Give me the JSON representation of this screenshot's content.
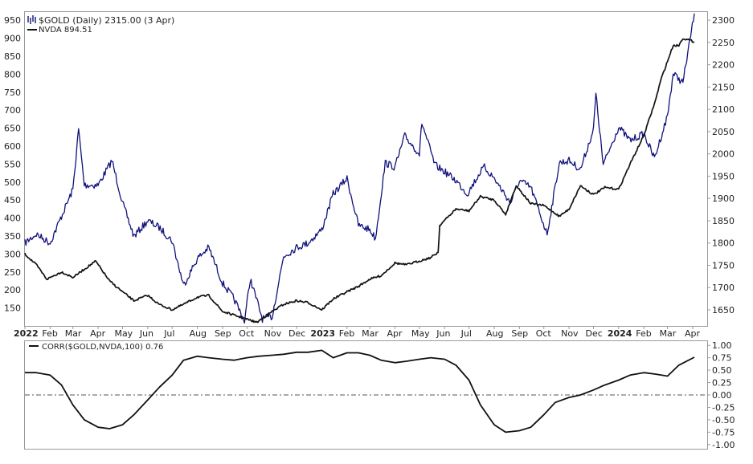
{
  "legend": {
    "gold_label": "$GOLD (Daily) 2315.00 (3 Apr)",
    "nvda_label": "NVDA 894.51",
    "corr_label": "CORR($GOLD,NVDA,100) 0.76"
  },
  "colors": {
    "gold": "#10127a",
    "nvda": "#111111",
    "corr": "#111111",
    "border": "#9a9a9a",
    "zero_line": "#555555"
  },
  "chart_data": [
    {
      "type": "line",
      "id": "price-panel",
      "x_tick_labels": [
        "2022",
        "Feb",
        "Mar",
        "Apr",
        "May",
        "Jun",
        "Jul",
        "Aug",
        "Sep",
        "Oct",
        "Nov",
        "Dec",
        "2023",
        "Feb",
        "Mar",
        "Apr",
        "May",
        "Jun",
        "Jul",
        "Aug",
        "Sep",
        "Oct",
        "Nov",
        "Dec",
        "2024",
        "Feb",
        "Mar",
        "Apr"
      ],
      "x_range": [
        "2022-01-01",
        "2024-04-05"
      ],
      "left_axis": {
        "series": "NVDA",
        "ticks": [
          150,
          200,
          250,
          300,
          350,
          400,
          450,
          500,
          550,
          600,
          650,
          700,
          750,
          800,
          850,
          900,
          950
        ],
        "ylim": [
          100,
          975
        ]
      },
      "right_axis": {
        "series": "$GOLD",
        "ticks": [
          1650,
          1700,
          1750,
          1800,
          1850,
          1900,
          1950,
          2000,
          2050,
          2100,
          2150,
          2200,
          2250,
          2300
        ],
        "ylim": [
          1614,
          2320
        ]
      },
      "grid": false,
      "series": [
        {
          "name": "$GOLD",
          "axis": "right",
          "points": [
            [
              "2022-01-01",
              1800
            ],
            [
              "2022-01-15",
              1820
            ],
            [
              "2022-02-01",
              1800
            ],
            [
              "2022-02-15",
              1860
            ],
            [
              "2022-03-01",
              1920
            ],
            [
              "2022-03-08",
              2055
            ],
            [
              "2022-03-15",
              1930
            ],
            [
              "2022-04-01",
              1930
            ],
            [
              "2022-04-18",
              1985
            ],
            [
              "2022-05-01",
              1890
            ],
            [
              "2022-05-15",
              1815
            ],
            [
              "2022-06-01",
              1850
            ],
            [
              "2022-06-15",
              1835
            ],
            [
              "2022-07-01",
              1805
            ],
            [
              "2022-07-15",
              1705
            ],
            [
              "2022-08-01",
              1765
            ],
            [
              "2022-08-15",
              1790
            ],
            [
              "2022-09-01",
              1710
            ],
            [
              "2022-09-15",
              1675
            ],
            [
              "2022-09-28",
              1625
            ],
            [
              "2022-10-05",
              1720
            ],
            [
              "2022-10-20",
              1630
            ],
            [
              "2022-11-01",
              1635
            ],
            [
              "2022-11-15",
              1770
            ],
            [
              "2022-12-01",
              1790
            ],
            [
              "2022-12-15",
              1800
            ],
            [
              "2023-01-01",
              1830
            ],
            [
              "2023-01-15",
              1910
            ],
            [
              "2023-02-01",
              1945
            ],
            [
              "2023-02-15",
              1840
            ],
            [
              "2023-03-01",
              1830
            ],
            [
              "2023-03-08",
              1810
            ],
            [
              "2023-03-20",
              1980
            ],
            [
              "2023-04-01",
              1970
            ],
            [
              "2023-04-13",
              2040
            ],
            [
              "2023-05-01",
              2000
            ],
            [
              "2023-05-04",
              2070
            ],
            [
              "2023-05-20",
              1975
            ],
            [
              "2023-06-01",
              1960
            ],
            [
              "2023-06-15",
              1940
            ],
            [
              "2023-06-29",
              1910
            ],
            [
              "2023-07-15",
              1960
            ],
            [
              "2023-07-20",
              1970
            ],
            [
              "2023-08-01",
              1945
            ],
            [
              "2023-08-21",
              1890
            ],
            [
              "2023-09-01",
              1940
            ],
            [
              "2023-09-15",
              1925
            ],
            [
              "2023-10-05",
              1820
            ],
            [
              "2023-10-20",
              1980
            ],
            [
              "2023-11-01",
              1985
            ],
            [
              "2023-11-15",
              1965
            ],
            [
              "2023-12-01",
              2055
            ],
            [
              "2023-12-04",
              2135
            ],
            [
              "2023-12-13",
              1975
            ],
            [
              "2024-01-01",
              2060
            ],
            [
              "2024-01-15",
              2030
            ],
            [
              "2024-02-01",
              2045
            ],
            [
              "2024-02-14",
              1990
            ],
            [
              "2024-03-01",
              2085
            ],
            [
              "2024-03-08",
              2180
            ],
            [
              "2024-03-20",
              2160
            ],
            [
              "2024-04-03",
              2315
            ]
          ]
        },
        {
          "name": "NVDA",
          "axis": "left",
          "points": [
            [
              "2022-01-01",
              300
            ],
            [
              "2022-01-15",
              270
            ],
            [
              "2022-01-28",
              230
            ],
            [
              "2022-02-15",
              250
            ],
            [
              "2022-03-01",
              235
            ],
            [
              "2022-03-29",
              280
            ],
            [
              "2022-04-15",
              225
            ],
            [
              "2022-05-01",
              195
            ],
            [
              "2022-05-15",
              170
            ],
            [
              "2022-06-01",
              185
            ],
            [
              "2022-06-15",
              160
            ],
            [
              "2022-07-01",
              145
            ],
            [
              "2022-07-15",
              160
            ],
            [
              "2022-08-01",
              180
            ],
            [
              "2022-08-15",
              185
            ],
            [
              "2022-09-01",
              140
            ],
            [
              "2022-09-15",
              130
            ],
            [
              "2022-10-13",
              110
            ],
            [
              "2022-11-01",
              140
            ],
            [
              "2022-11-15",
              160
            ],
            [
              "2022-12-01",
              170
            ],
            [
              "2022-12-15",
              165
            ],
            [
              "2023-01-01",
              145
            ],
            [
              "2023-01-15",
              175
            ],
            [
              "2023-02-01",
              195
            ],
            [
              "2023-02-15",
              210
            ],
            [
              "2023-03-01",
              230
            ],
            [
              "2023-03-15",
              240
            ],
            [
              "2023-04-01",
              275
            ],
            [
              "2023-04-15",
              270
            ],
            [
              "2023-05-15",
              290
            ],
            [
              "2023-05-24",
              305
            ],
            [
              "2023-05-26",
              380
            ],
            [
              "2023-06-15",
              425
            ],
            [
              "2023-07-01",
              420
            ],
            [
              "2023-07-15",
              460
            ],
            [
              "2023-08-01",
              450
            ],
            [
              "2023-08-15",
              410
            ],
            [
              "2023-08-28",
              490
            ],
            [
              "2023-09-15",
              440
            ],
            [
              "2023-10-01",
              435
            ],
            [
              "2023-10-20",
              405
            ],
            [
              "2023-11-01",
              425
            ],
            [
              "2023-11-15",
              490
            ],
            [
              "2023-12-01",
              465
            ],
            [
              "2023-12-15",
              485
            ],
            [
              "2024-01-01",
              480
            ],
            [
              "2024-01-15",
              550
            ],
            [
              "2024-02-01",
              630
            ],
            [
              "2024-02-15",
              725
            ],
            [
              "2024-02-22",
              785
            ],
            [
              "2024-03-08",
              880
            ],
            [
              "2024-03-15",
              880
            ],
            [
              "2024-03-20",
              900
            ],
            [
              "2024-04-03",
              890
            ]
          ]
        }
      ]
    },
    {
      "type": "line",
      "id": "correlation-panel",
      "title": "CORR($GOLD,NVDA,100) 0.76",
      "right_axis": {
        "ticks": [
          "1.00",
          "0.75",
          "0.50",
          "0.25",
          "0.00",
          "-0.25",
          "-0.50",
          "-0.75",
          "-1.00"
        ],
        "ylim": [
          -1.1,
          1.1
        ]
      },
      "zero_line": true,
      "series": [
        {
          "name": "CORR($GOLD,NVDA,100)",
          "points": [
            [
              "2022-01-01",
              0.45
            ],
            [
              "2022-01-15",
              0.45
            ],
            [
              "2022-02-01",
              0.4
            ],
            [
              "2022-02-15",
              0.2
            ],
            [
              "2022-03-01",
              -0.2
            ],
            [
              "2022-03-15",
              -0.5
            ],
            [
              "2022-04-01",
              -0.65
            ],
            [
              "2022-04-15",
              -0.68
            ],
            [
              "2022-05-01",
              -0.6
            ],
            [
              "2022-05-15",
              -0.4
            ],
            [
              "2022-06-01",
              -0.1
            ],
            [
              "2022-06-15",
              0.15
            ],
            [
              "2022-07-01",
              0.4
            ],
            [
              "2022-07-15",
              0.7
            ],
            [
              "2022-08-01",
              0.78
            ],
            [
              "2022-08-15",
              0.75
            ],
            [
              "2022-09-01",
              0.72
            ],
            [
              "2022-09-15",
              0.7
            ],
            [
              "2022-10-01",
              0.75
            ],
            [
              "2022-10-15",
              0.78
            ],
            [
              "2022-11-01",
              0.8
            ],
            [
              "2022-11-15",
              0.82
            ],
            [
              "2022-12-01",
              0.86
            ],
            [
              "2022-12-15",
              0.86
            ],
            [
              "2023-01-01",
              0.9
            ],
            [
              "2023-01-15",
              0.75
            ],
            [
              "2023-02-01",
              0.85
            ],
            [
              "2023-02-15",
              0.85
            ],
            [
              "2023-03-01",
              0.8
            ],
            [
              "2023-03-15",
              0.7
            ],
            [
              "2023-04-01",
              0.65
            ],
            [
              "2023-04-15",
              0.68
            ],
            [
              "2023-05-01",
              0.72
            ],
            [
              "2023-05-15",
              0.75
            ],
            [
              "2023-06-01",
              0.72
            ],
            [
              "2023-06-15",
              0.6
            ],
            [
              "2023-07-01",
              0.3
            ],
            [
              "2023-07-15",
              -0.2
            ],
            [
              "2023-08-01",
              -0.6
            ],
            [
              "2023-08-15",
              -0.75
            ],
            [
              "2023-09-01",
              -0.72
            ],
            [
              "2023-09-15",
              -0.65
            ],
            [
              "2023-10-01",
              -0.4
            ],
            [
              "2023-10-15",
              -0.15
            ],
            [
              "2023-11-01",
              -0.05
            ],
            [
              "2023-11-15",
              0.0
            ],
            [
              "2023-12-01",
              0.1
            ],
            [
              "2023-12-15",
              0.2
            ],
            [
              "2024-01-01",
              0.3
            ],
            [
              "2024-01-15",
              0.4
            ],
            [
              "2024-02-01",
              0.45
            ],
            [
              "2024-02-15",
              0.42
            ],
            [
              "2024-03-01",
              0.38
            ],
            [
              "2024-03-15",
              0.6
            ],
            [
              "2024-04-03",
              0.76
            ]
          ]
        }
      ]
    }
  ]
}
